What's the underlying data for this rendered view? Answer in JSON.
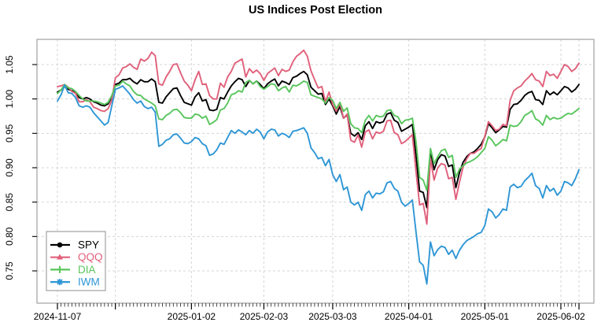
{
  "title": "US Indices Post Election",
  "chart_data": {
    "type": "line",
    "title": "US Indices Post Election",
    "xlabel": "",
    "ylabel": "",
    "grid": true,
    "legend_position": "bottom-left",
    "ylim": [
      0.703,
      1.087
    ],
    "y_ticks": [
      0.75,
      0.8,
      0.85,
      0.9,
      0.95,
      1.0,
      1.05
    ],
    "y_tick_labels": [
      "0.75",
      "0.80",
      "0.85",
      "0.90",
      "0.95",
      "1.00",
      "1.05"
    ],
    "x_major_ticks": [
      {
        "date": "2024-11-07",
        "label": "2024-11-07"
      },
      {
        "date": "2024-12-02",
        "label": ""
      },
      {
        "date": "2025-01-02",
        "label": "2025-01-02"
      },
      {
        "date": "2025-02-03",
        "label": "2025-02-03"
      },
      {
        "date": "2025-03-03",
        "label": "2025-03-03"
      },
      {
        "date": "2025-04-01",
        "label": "2025-04-01"
      },
      {
        "date": "2025-05-01",
        "label": "2025-05-01"
      },
      {
        "date": "2025-06-02",
        "label": "2025-06-02"
      },
      {
        "date": "2025-06-09",
        "label": ""
      }
    ],
    "axis_colors": {
      "grid": "#d4d4d4",
      "box": "#a0a0a0",
      "tick": "#333333",
      "label": "#000000"
    },
    "dates": [
      "2024-11-07",
      "2024-11-08",
      "2024-11-11",
      "2024-11-12",
      "2024-11-13",
      "2024-11-14",
      "2024-11-15",
      "2024-11-18",
      "2024-11-19",
      "2024-11-20",
      "2024-11-21",
      "2024-11-22",
      "2024-11-25",
      "2024-11-26",
      "2024-11-27",
      "2024-11-29",
      "2024-12-02",
      "2024-12-03",
      "2024-12-04",
      "2024-12-05",
      "2024-12-06",
      "2024-12-09",
      "2024-12-10",
      "2024-12-11",
      "2024-12-12",
      "2024-12-13",
      "2024-12-16",
      "2024-12-17",
      "2024-12-18",
      "2024-12-19",
      "2024-12-20",
      "2024-12-23",
      "2024-12-24",
      "2024-12-26",
      "2024-12-27",
      "2024-12-30",
      "2024-12-31",
      "2025-01-02",
      "2025-01-03",
      "2025-01-06",
      "2025-01-07",
      "2025-01-08",
      "2025-01-10",
      "2025-01-13",
      "2025-01-14",
      "2025-01-15",
      "2025-01-16",
      "2025-01-17",
      "2025-01-21",
      "2025-01-22",
      "2025-01-23",
      "2025-01-24",
      "2025-01-27",
      "2025-01-28",
      "2025-01-29",
      "2025-01-30",
      "2025-01-31",
      "2025-02-03",
      "2025-02-04",
      "2025-02-05",
      "2025-02-06",
      "2025-02-07",
      "2025-02-10",
      "2025-02-11",
      "2025-02-12",
      "2025-02-13",
      "2025-02-14",
      "2025-02-18",
      "2025-02-19",
      "2025-02-20",
      "2025-02-21",
      "2025-02-24",
      "2025-02-25",
      "2025-02-26",
      "2025-02-27",
      "2025-02-28",
      "2025-03-03",
      "2025-03-04",
      "2025-03-05",
      "2025-03-06",
      "2025-03-07",
      "2025-03-10",
      "2025-03-11",
      "2025-03-12",
      "2025-03-13",
      "2025-03-14",
      "2025-03-17",
      "2025-03-18",
      "2025-03-19",
      "2025-03-20",
      "2025-03-21",
      "2025-03-24",
      "2025-03-25",
      "2025-03-26",
      "2025-03-27",
      "2025-03-28",
      "2025-03-31",
      "2025-04-01",
      "2025-04-02",
      "2025-04-03",
      "2025-04-04",
      "2025-04-07",
      "2025-04-08",
      "2025-04-09",
      "2025-04-10",
      "2025-04-11",
      "2025-04-14",
      "2025-04-15",
      "2025-04-16",
      "2025-04-17",
      "2025-04-21",
      "2025-04-22",
      "2025-04-23",
      "2025-04-24",
      "2025-04-25",
      "2025-04-28",
      "2025-04-29",
      "2025-04-30",
      "2025-05-01",
      "2025-05-02",
      "2025-05-05",
      "2025-05-06",
      "2025-05-07",
      "2025-05-08",
      "2025-05-09",
      "2025-05-12",
      "2025-05-13",
      "2025-05-14",
      "2025-05-15",
      "2025-05-16",
      "2025-05-19",
      "2025-05-20",
      "2025-05-21",
      "2025-05-22",
      "2025-05-23",
      "2025-05-27",
      "2025-05-28",
      "2025-05-29",
      "2025-05-30",
      "2025-06-02",
      "2025-06-03",
      "2025-06-04",
      "2025-06-05",
      "2025-06-06",
      "2025-06-09"
    ],
    "series": [
      {
        "name": "SPY",
        "color": "#000000",
        "marker": "circle",
        "values": [
          1.01,
          1.013,
          1.018,
          1.014,
          1.012,
          1.01,
          1.002,
          1.0,
          1.002,
          1.0,
          0.996,
          0.994,
          0.991,
          0.99,
          0.993,
          1.003,
          1.021,
          1.023,
          1.028,
          1.028,
          1.03,
          1.025,
          1.022,
          1.028,
          1.025,
          1.025,
          1.029,
          1.025,
          0.995,
          0.994,
          1.003,
          1.009,
          1.015,
          1.016,
          1.005,
          0.995,
          0.993,
          0.991,
          1.003,
          1.009,
          0.997,
          0.999,
          0.984,
          0.983,
          0.985,
          1.002,
          1.0,
          1.01,
          1.019,
          1.025,
          1.03,
          1.028,
          1.018,
          1.027,
          1.022,
          1.026,
          1.021,
          1.015,
          1.022,
          1.026,
          1.029,
          1.019,
          1.026,
          1.024,
          1.021,
          1.031,
          1.033,
          1.037,
          1.04,
          1.035,
          1.017,
          1.012,
          1.007,
          1.008,
          0.992,
          1.0,
          0.99,
          0.978,
          0.989,
          0.972,
          0.977,
          0.95,
          0.946,
          0.951,
          0.941,
          0.961,
          0.967,
          0.957,
          0.967,
          0.965,
          0.967,
          0.978,
          0.98,
          0.969,
          0.966,
          0.953,
          0.956,
          0.959,
          0.963,
          0.918,
          0.866,
          0.864,
          0.842,
          0.925,
          0.897,
          0.912,
          0.919,
          0.917,
          0.902,
          0.904,
          0.871,
          0.893,
          0.908,
          0.916,
          0.921,
          0.923,
          0.928,
          0.934,
          0.945,
          0.964,
          0.958,
          0.951,
          0.955,
          0.96,
          0.959,
          0.985,
          0.992,
          0.993,
          0.998,
          1.005,
          1.009,
          1.011,
          0.999,
          0.998,
          0.992,
          1.012,
          1.006,
          1.01,
          1.006,
          1.012,
          1.018,
          1.016,
          1.01,
          1.014,
          1.021
        ]
      },
      {
        "name": "QQQ",
        "color": "#e0607a",
        "marker": "triangle",
        "values": [
          1.018,
          1.019,
          1.021,
          1.017,
          1.011,
          1.008,
          0.996,
          0.996,
          0.999,
          0.996,
          0.988,
          0.986,
          0.983,
          0.982,
          0.986,
          0.998,
          1.031,
          1.035,
          1.045,
          1.047,
          1.051,
          1.046,
          1.043,
          1.058,
          1.055,
          1.059,
          1.068,
          1.063,
          1.022,
          1.02,
          1.032,
          1.04,
          1.05,
          1.051,
          1.038,
          1.026,
          1.02,
          1.012,
          1.028,
          1.04,
          1.021,
          1.022,
          1.005,
          1.0,
          1.0,
          1.023,
          1.017,
          1.032,
          1.04,
          1.052,
          1.055,
          1.058,
          1.032,
          1.044,
          1.038,
          1.042,
          1.037,
          1.027,
          1.037,
          1.041,
          1.045,
          1.034,
          1.043,
          1.04,
          1.042,
          1.054,
          1.062,
          1.066,
          1.071,
          1.062,
          1.041,
          1.028,
          1.016,
          1.018,
          0.996,
          1.01,
          0.992,
          0.982,
          0.994,
          0.972,
          0.978,
          0.94,
          0.937,
          0.948,
          0.93,
          0.952,
          0.955,
          0.942,
          0.952,
          0.95,
          0.953,
          0.968,
          0.969,
          0.951,
          0.948,
          0.935,
          0.938,
          0.943,
          0.948,
          0.895,
          0.846,
          0.848,
          0.818,
          0.913,
          0.882,
          0.9,
          0.906,
          0.904,
          0.884,
          0.886,
          0.854,
          0.879,
          0.901,
          0.913,
          0.921,
          0.921,
          0.925,
          0.928,
          0.946,
          0.967,
          0.961,
          0.954,
          0.956,
          0.963,
          0.961,
          0.998,
          1.012,
          1.016,
          1.019,
          1.026,
          1.031,
          1.037,
          1.028,
          1.026,
          1.018,
          1.04,
          1.034,
          1.036,
          1.03,
          1.04,
          1.05,
          1.047,
          1.04,
          1.044,
          1.052
        ]
      },
      {
        "name": "DIA",
        "color": "#58c55c",
        "marker": "plus",
        "values": [
          1.008,
          1.013,
          1.021,
          1.016,
          1.015,
          1.011,
          1.005,
          1.0,
          0.997,
          0.997,
          0.997,
          0.996,
          0.994,
          0.992,
          0.995,
          1.005,
          1.019,
          1.02,
          1.026,
          1.022,
          1.019,
          1.011,
          1.006,
          1.005,
          1.0,
          0.997,
          0.994,
          0.99,
          0.971,
          0.97,
          0.976,
          0.979,
          0.984,
          0.985,
          0.98,
          0.973,
          0.972,
          0.972,
          0.978,
          0.977,
          0.972,
          0.975,
          0.963,
          0.966,
          0.97,
          0.984,
          0.986,
          0.994,
          1.006,
          1.008,
          1.012,
          1.01,
          1.024,
          1.027,
          1.022,
          1.026,
          1.018,
          1.014,
          1.018,
          1.022,
          1.021,
          1.012,
          1.016,
          1.018,
          1.01,
          1.02,
          1.019,
          1.022,
          1.026,
          1.024,
          1.006,
          1.004,
          1.002,
          1.0,
          0.994,
          1.002,
          0.998,
          0.986,
          0.995,
          0.982,
          0.987,
          0.964,
          0.958,
          0.957,
          0.951,
          0.969,
          0.976,
          0.968,
          0.976,
          0.974,
          0.975,
          0.983,
          0.984,
          0.976,
          0.974,
          0.964,
          0.969,
          0.97,
          0.972,
          0.938,
          0.886,
          0.882,
          0.867,
          0.928,
          0.906,
          0.916,
          0.925,
          0.927,
          0.915,
          0.918,
          0.886,
          0.898,
          0.903,
          0.907,
          0.909,
          0.912,
          0.916,
          0.922,
          0.928,
          0.945,
          0.94,
          0.932,
          0.936,
          0.941,
          0.939,
          0.962,
          0.96,
          0.961,
          0.967,
          0.976,
          0.979,
          0.983,
          0.971,
          0.968,
          0.962,
          0.976,
          0.97,
          0.973,
          0.971,
          0.972,
          0.976,
          0.979,
          0.978,
          0.982,
          0.986
        ]
      },
      {
        "name": "IWM",
        "color": "#2e96d6",
        "marker": "asterisk",
        "values": [
          0.997,
          1.006,
          1.02,
          1.009,
          1.008,
          1.002,
          0.99,
          0.988,
          0.99,
          0.988,
          0.98,
          0.974,
          0.968,
          0.962,
          0.966,
          0.99,
          1.014,
          1.016,
          1.019,
          1.013,
          1.007,
          0.999,
          0.994,
          0.997,
          0.989,
          0.986,
          0.988,
          0.981,
          0.931,
          0.934,
          0.94,
          0.942,
          0.948,
          0.949,
          0.943,
          0.936,
          0.935,
          0.938,
          0.944,
          0.942,
          0.935,
          0.932,
          0.918,
          0.92,
          0.926,
          0.936,
          0.934,
          0.944,
          0.954,
          0.95,
          0.955,
          0.952,
          0.948,
          0.954,
          0.95,
          0.956,
          0.952,
          0.942,
          0.952,
          0.956,
          0.955,
          0.946,
          0.95,
          0.948,
          0.944,
          0.953,
          0.954,
          0.956,
          0.958,
          0.95,
          0.929,
          0.922,
          0.913,
          0.915,
          0.903,
          0.912,
          0.89,
          0.88,
          0.89,
          0.868,
          0.872,
          0.85,
          0.846,
          0.85,
          0.838,
          0.861,
          0.866,
          0.856,
          0.863,
          0.862,
          0.865,
          0.878,
          0.88,
          0.87,
          0.866,
          0.85,
          0.844,
          0.848,
          0.853,
          0.807,
          0.763,
          0.758,
          0.731,
          0.792,
          0.772,
          0.781,
          0.786,
          0.784,
          0.774,
          0.78,
          0.768,
          0.78,
          0.788,
          0.794,
          0.797,
          0.8,
          0.804,
          0.806,
          0.816,
          0.84,
          0.836,
          0.827,
          0.832,
          0.84,
          0.838,
          0.872,
          0.876,
          0.871,
          0.873,
          0.881,
          0.886,
          0.892,
          0.874,
          0.87,
          0.856,
          0.874,
          0.866,
          0.87,
          0.86,
          0.866,
          0.88,
          0.878,
          0.874,
          0.884,
          0.897
        ]
      }
    ]
  }
}
